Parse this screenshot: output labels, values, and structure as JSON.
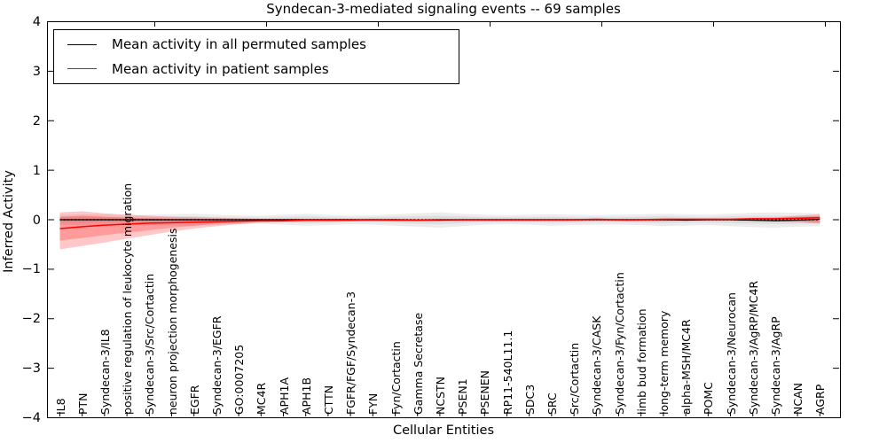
{
  "title": "Syndecan-3-mediated signaling events -- 69 samples",
  "legend": {
    "items": [
      {
        "label": "Mean activity in all permuted samples",
        "color": "#000000"
      },
      {
        "label": "Mean activity in patient samples",
        "color": "#ff0000"
      }
    ]
  },
  "axes": {
    "x_label": "Cellular Entities",
    "y_label": "Inferred Activity",
    "y_tick_labels": [
      "4",
      "3",
      "2",
      "1",
      "0",
      "−1",
      "−2",
      "−3",
      "−4"
    ]
  },
  "chart_data": {
    "type": "line",
    "title": "Syndecan-3-mediated signaling events -- 69 samples",
    "xlabel": "Cellular Entities",
    "ylabel": "Inferred Activity",
    "ylim": [
      -4,
      4
    ],
    "grid": false,
    "legend_position": "upper left",
    "categories": [
      "IL8",
      "PTN",
      "Syndecan-3/IL8",
      "positive regulation of leukocyte migration",
      "Syndecan-3/Src/Cortactin",
      "neuron projection morphogenesis",
      "EGFR",
      "Syndecan-3/EGFR",
      "GO:0007205",
      "MC4R",
      "APH1A",
      "APH1B",
      "CTTN",
      "FGFR/FGF/Syndecan-3",
      "FYN",
      "Fyn/Cortactin",
      "Gamma Secretase",
      "NCSTN",
      "PSEN1",
      "PSENEN",
      "RP11-540L11.1",
      "SDC3",
      "SRC",
      "Src/Cortactin",
      "Syndecan-3/CASK",
      "Syndecan-3/Fyn/Cortactin",
      "limb bud formation",
      "long-term memory",
      "alpha-MSH/MC4R",
      "POMC",
      "Syndecan-3/Neurocan",
      "Syndecan-3/AgRP/MC4R",
      "Syndecan-3/AgRP",
      "NCAN",
      "AGRP"
    ],
    "series": [
      {
        "name": "Mean activity in all permuted samples",
        "color": "#000000",
        "width": 1.2,
        "values": [
          0.0,
          0.0,
          0.0,
          0.0,
          0.0,
          0.0,
          0.0,
          0.0,
          0.0,
          0.0,
          0.0,
          0.0,
          0.0,
          0.0,
          0.0,
          0.0,
          -0.01,
          -0.01,
          0.0,
          0.0,
          0.0,
          0.0,
          0.0,
          0.0,
          0.0,
          0.0,
          0.0,
          0.0,
          -0.01,
          0.0,
          0.0,
          -0.01,
          -0.02,
          -0.01,
          0.01
        ]
      },
      {
        "name": "Mean activity in patient samples",
        "color": "#ff0000",
        "width": 1.5,
        "values": [
          -0.18,
          -0.14,
          -0.11,
          -0.09,
          -0.07,
          -0.06,
          -0.05,
          -0.04,
          -0.03,
          -0.02,
          -0.02,
          -0.01,
          -0.01,
          -0.01,
          0.0,
          -0.01,
          -0.01,
          0.0,
          0.0,
          0.0,
          0.0,
          0.0,
          0.0,
          0.0,
          0.01,
          0.0,
          0.0,
          0.01,
          0.01,
          0.01,
          0.01,
          0.02,
          0.02,
          0.03,
          0.04
        ]
      }
    ],
    "bands": [
      {
        "name": "permuted-range-outer",
        "color": "#999999",
        "opacity": 0.18,
        "upper": [
          0.1,
          0.11,
          0.1,
          0.09,
          0.1,
          0.11,
          0.12,
          0.1,
          0.09,
          0.08,
          0.1,
          0.12,
          0.1,
          0.08,
          0.09,
          0.11,
          0.13,
          0.15,
          0.12,
          0.1,
          0.09,
          0.1,
          0.11,
          0.1,
          0.09,
          0.1,
          0.11,
          0.12,
          0.11,
          0.1,
          0.12,
          0.14,
          0.15,
          0.14,
          0.13
        ],
        "lower": [
          -0.1,
          -0.11,
          -0.1,
          -0.09,
          -0.1,
          -0.12,
          -0.13,
          -0.11,
          -0.09,
          -0.08,
          -0.1,
          -0.12,
          -0.11,
          -0.09,
          -0.1,
          -0.12,
          -0.14,
          -0.16,
          -0.13,
          -0.1,
          -0.09,
          -0.1,
          -0.12,
          -0.11,
          -0.1,
          -0.1,
          -0.11,
          -0.13,
          -0.12,
          -0.11,
          -0.13,
          -0.15,
          -0.16,
          -0.14,
          -0.13
        ]
      },
      {
        "name": "permuted-range-inner",
        "color": "#999999",
        "opacity": 0.18,
        "upper": [
          0.05,
          0.06,
          0.05,
          0.05,
          0.05,
          0.06,
          0.07,
          0.05,
          0.05,
          0.04,
          0.05,
          0.07,
          0.05,
          0.04,
          0.05,
          0.06,
          0.07,
          0.08,
          0.07,
          0.05,
          0.05,
          0.05,
          0.06,
          0.05,
          0.05,
          0.05,
          0.06,
          0.07,
          0.06,
          0.05,
          0.07,
          0.08,
          0.08,
          0.08,
          0.07
        ],
        "lower": [
          -0.05,
          -0.06,
          -0.05,
          -0.05,
          -0.05,
          -0.06,
          -0.07,
          -0.06,
          -0.05,
          -0.04,
          -0.05,
          -0.07,
          -0.06,
          -0.05,
          -0.05,
          -0.06,
          -0.08,
          -0.09,
          -0.07,
          -0.05,
          -0.05,
          -0.05,
          -0.06,
          -0.06,
          -0.05,
          -0.05,
          -0.06,
          -0.07,
          -0.06,
          -0.06,
          -0.07,
          -0.08,
          -0.09,
          -0.08,
          -0.07
        ]
      },
      {
        "name": "patient-range-outer",
        "color": "#ff0000",
        "opacity": 0.22,
        "upper": [
          0.15,
          0.17,
          0.13,
          0.1,
          0.08,
          0.06,
          0.05,
          0.04,
          0.03,
          0.02,
          0.02,
          0.02,
          0.02,
          0.02,
          0.02,
          0.02,
          0.02,
          0.02,
          0.02,
          0.02,
          0.02,
          0.02,
          0.02,
          0.02,
          0.02,
          0.02,
          0.02,
          0.03,
          0.03,
          0.03,
          0.03,
          0.04,
          0.05,
          0.08,
          0.11
        ],
        "lower": [
          -0.6,
          -0.53,
          -0.46,
          -0.38,
          -0.31,
          -0.24,
          -0.18,
          -0.13,
          -0.09,
          -0.06,
          -0.05,
          -0.04,
          -0.04,
          -0.03,
          -0.03,
          -0.03,
          -0.03,
          -0.03,
          -0.03,
          -0.03,
          -0.03,
          -0.03,
          -0.03,
          -0.03,
          -0.02,
          -0.03,
          -0.03,
          -0.03,
          -0.02,
          -0.02,
          -0.02,
          -0.03,
          -0.03,
          -0.05,
          -0.08
        ]
      },
      {
        "name": "patient-range-inner",
        "color": "#ff0000",
        "opacity": 0.22,
        "upper": [
          0.06,
          0.08,
          0.06,
          0.04,
          0.03,
          0.02,
          0.02,
          0.01,
          0.01,
          0.01,
          0.01,
          0.01,
          0.01,
          0.01,
          0.01,
          0.01,
          0.01,
          0.01,
          0.01,
          0.01,
          0.01,
          0.01,
          0.01,
          0.01,
          0.01,
          0.01,
          0.01,
          0.01,
          0.02,
          0.02,
          0.02,
          0.02,
          0.03,
          0.05,
          0.07
        ],
        "lower": [
          -0.42,
          -0.37,
          -0.31,
          -0.26,
          -0.21,
          -0.16,
          -0.12,
          -0.08,
          -0.06,
          -0.04,
          -0.03,
          -0.02,
          -0.02,
          -0.02,
          -0.02,
          -0.02,
          -0.02,
          -0.02,
          -0.02,
          -0.02,
          -0.02,
          -0.02,
          -0.02,
          -0.02,
          -0.01,
          -0.02,
          -0.02,
          -0.02,
          -0.01,
          -0.01,
          -0.01,
          -0.02,
          -0.02,
          -0.03,
          -0.05
        ]
      }
    ],
    "zero_line": {
      "y": 0,
      "style": "dotted",
      "color": "#000000"
    }
  }
}
